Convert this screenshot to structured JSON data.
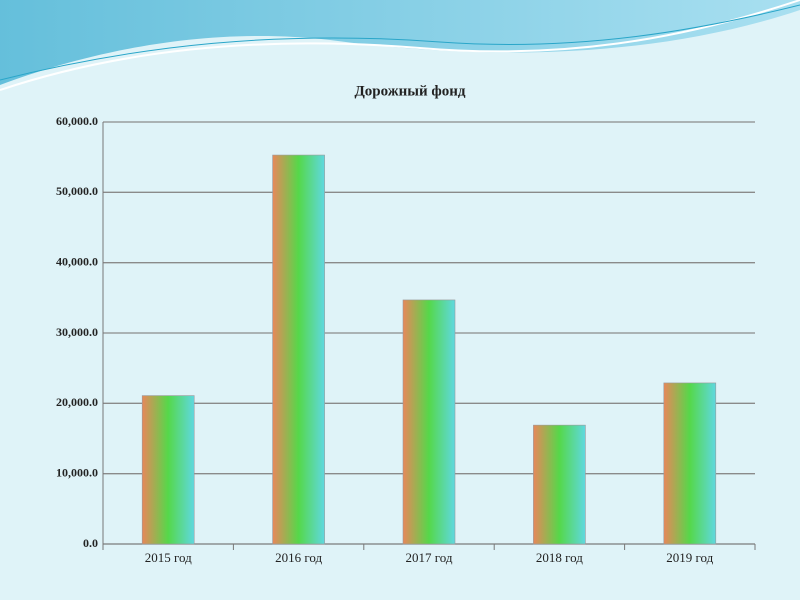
{
  "chart_data": {
    "type": "bar",
    "title": "Дорожный фонд",
    "categories": [
      "2015 год",
      "2016 год",
      "2017 год",
      "2018 год",
      "2019 год"
    ],
    "values": [
      21100,
      55300,
      34700,
      16900,
      22900
    ],
    "ylim": [
      0,
      60000
    ],
    "yticks": [
      {
        "value": 0,
        "label": "0.0"
      },
      {
        "value": 10000,
        "label": "10,000.0"
      },
      {
        "value": 20000,
        "label": "20,000.0"
      },
      {
        "value": 30000,
        "label": "30,000.0"
      },
      {
        "value": 40000,
        "label": "40,000.0"
      },
      {
        "value": 50000,
        "label": "50,000.0"
      },
      {
        "value": 60000,
        "label": "60,000.0"
      }
    ],
    "grid": true
  }
}
